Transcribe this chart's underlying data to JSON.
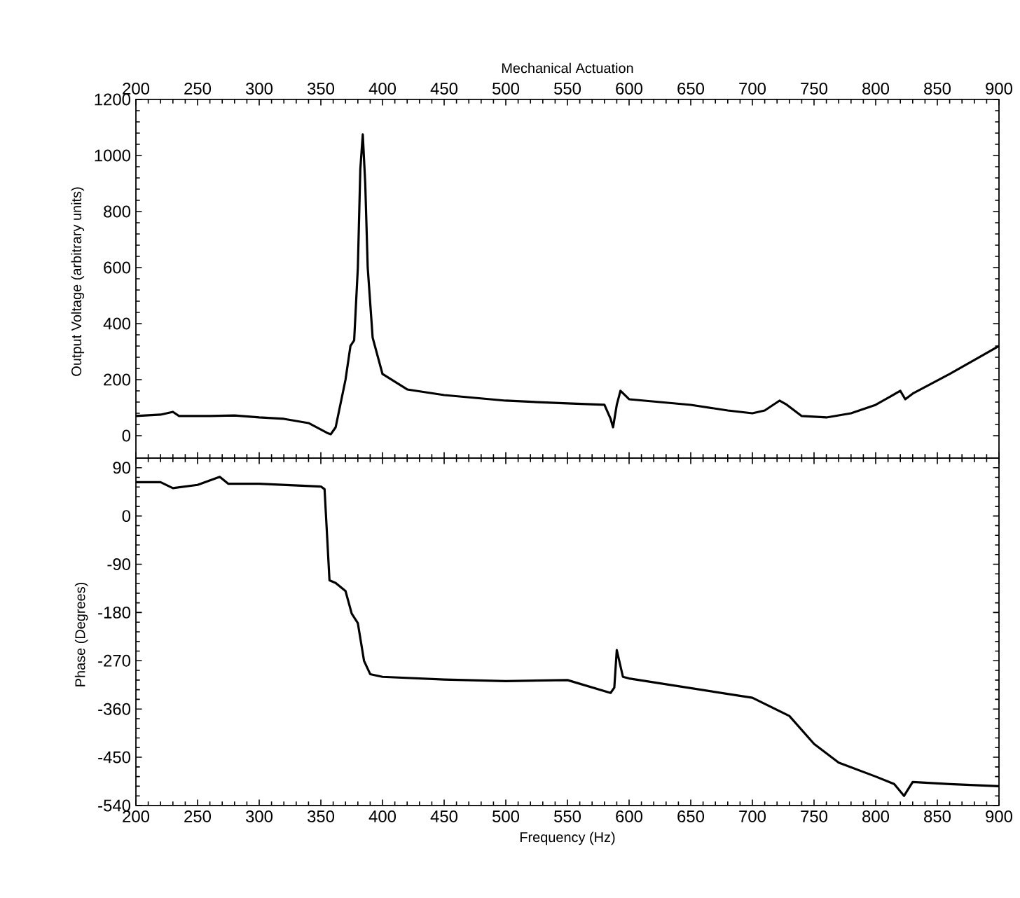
{
  "chart_data": [
    {
      "type": "line",
      "xlabel": "Mechanical Actuation",
      "ylabel": "Output Voltage (arbitrary units)",
      "xlim": [
        200,
        900
      ],
      "xticks": [
        200,
        250,
        300,
        350,
        400,
        450,
        500,
        550,
        600,
        650,
        700,
        750,
        800,
        850,
        900
      ],
      "ylim": [
        -80,
        1200
      ],
      "yticks": [
        0,
        200,
        400,
        600,
        800,
        1000,
        1200
      ],
      "series": [
        {
          "color": "#000000",
          "x": [
            200,
            220,
            230,
            235,
            260,
            280,
            300,
            320,
            340,
            355,
            358,
            362,
            370,
            374,
            377,
            380,
            382,
            384,
            386,
            388,
            392,
            400,
            420,
            450,
            500,
            550,
            580,
            585,
            587,
            590,
            593,
            600,
            650,
            680,
            700,
            710,
            722,
            728,
            740,
            760,
            780,
            800,
            820,
            824,
            830,
            860,
            900
          ],
          "values": [
            70,
            75,
            85,
            70,
            70,
            72,
            65,
            60,
            45,
            10,
            5,
            30,
            200,
            320,
            340,
            600,
            950,
            1075,
            900,
            600,
            350,
            220,
            165,
            145,
            125,
            115,
            110,
            60,
            30,
            110,
            160,
            130,
            110,
            90,
            80,
            90,
            125,
            110,
            70,
            65,
            80,
            110,
            160,
            130,
            150,
            220,
            320
          ]
        }
      ]
    },
    {
      "type": "line",
      "xlabel": "Frequency (Hz)",
      "ylabel": "Phase (Degrees)",
      "xlim": [
        200,
        900
      ],
      "xticks": [
        200,
        250,
        300,
        350,
        400,
        450,
        500,
        550,
        600,
        650,
        700,
        750,
        800,
        850,
        900
      ],
      "ylim": [
        -540,
        108
      ],
      "yticks": [
        -540,
        -450,
        -360,
        -270,
        -180,
        -90,
        0,
        90
      ],
      "series": [
        {
          "color": "#000000",
          "x": [
            200,
            220,
            230,
            250,
            268,
            275,
            300,
            350,
            353,
            357,
            362,
            370,
            375,
            380,
            385,
            390,
            400,
            450,
            500,
            550,
            585,
            588,
            590,
            595,
            600,
            650,
            700,
            730,
            750,
            770,
            800,
            815,
            823,
            830,
            860,
            900
          ],
          "values": [
            63,
            63,
            52,
            58,
            73,
            60,
            60,
            55,
            50,
            -120,
            -125,
            -140,
            -182,
            -200,
            -270,
            -295,
            -300,
            -305,
            -308,
            -306,
            -330,
            -320,
            -250,
            -300,
            -303,
            -321,
            -339,
            -373,
            -425,
            -460,
            -486,
            -500,
            -522,
            -496,
            -500,
            -504
          ]
        }
      ]
    }
  ]
}
